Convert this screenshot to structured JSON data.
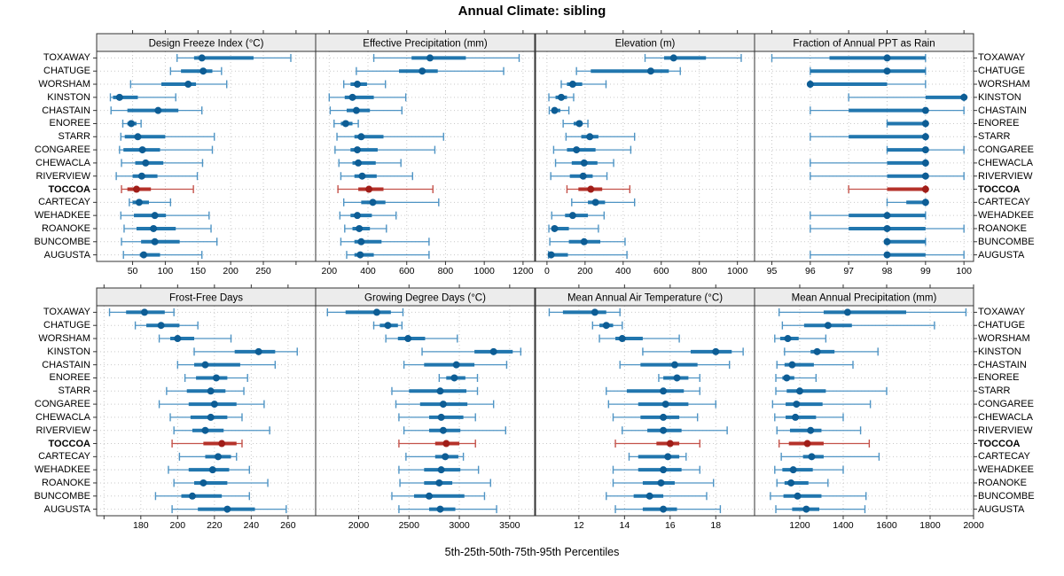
{
  "chart_data": {
    "type": "dotplot-percentiles",
    "title": "Annual Climate: sibling",
    "xlabel": "5th-25th-50th-75th-95th Percentiles",
    "percentile_labels": [
      "5th",
      "25th",
      "50th",
      "75th",
      "95th"
    ],
    "stations": [
      "TOXAWAY",
      "CHATUGE",
      "WORSHAM",
      "KINSTON",
      "CHASTAIN",
      "ENOREE",
      "STARR",
      "CONGAREE",
      "CHEWACLA",
      "RIVERVIEW",
      "TOCCOA",
      "CARTECAY",
      "WEHADKEE",
      "ROANOKE",
      "BUNCOMBE",
      "AUGUSTA"
    ],
    "highlight_station": "TOCCOA",
    "colors": {
      "blue_line": "#4f94c4",
      "blue_bar": "#2176ae",
      "blue_dot": "#0d5d95",
      "red_line": "#c4524a",
      "red_bar": "#b5322a",
      "red_dot": "#a01d18",
      "gridline": "#c9c9c9",
      "strip_bg": "#ececec",
      "border": "#333333",
      "tick": "#333333",
      "text": "#000000"
    },
    "layout": {
      "rows": 2,
      "cols": 4,
      "grid": "dotted",
      "legend": false,
      "station_labels": "both-sides"
    },
    "panels": [
      {
        "title": "Design Freeze Index (°C)",
        "row": 0,
        "col": 0,
        "ticks": [
          50,
          100,
          150,
          200,
          250
        ],
        "extra_gridlines": [
          300
        ],
        "xlim": [
          -5,
          330
        ],
        "values": {
          "TOXAWAY": [
            118,
            144,
            156,
            235,
            292
          ],
          "CHATUGE": [
            108,
            124,
            158,
            172,
            186
          ],
          "WORSHAM": [
            47,
            94,
            135,
            147,
            194
          ],
          "KINSTON": [
            16,
            20,
            30,
            58,
            116
          ],
          "CHASTAIN": [
            17,
            42,
            89,
            120,
            156
          ],
          "ENOREE": [
            35,
            42,
            48,
            56,
            63
          ],
          "STARR": [
            32,
            38,
            58,
            100,
            175
          ],
          "CONGAREE": [
            30,
            36,
            65,
            92,
            172
          ],
          "CHEWACLA": [
            33,
            54,
            70,
            97,
            157
          ],
          "RIVERVIEW": [
            25,
            50,
            64,
            88,
            149
          ],
          "TOCCOA": [
            33,
            42,
            56,
            78,
            143
          ],
          "CARTECAY": [
            45,
            50,
            60,
            75,
            108
          ],
          "WEHADKEE": [
            32,
            52,
            84,
            101,
            167
          ],
          "ROANOKE": [
            37,
            56,
            82,
            116,
            170
          ],
          "BUNCOMBE": [
            33,
            63,
            84,
            122,
            179
          ],
          "AUGUSTA": [
            36,
            61,
            67,
            92,
            156
          ]
        }
      },
      {
        "title": "Effective Precipitation (mm)",
        "row": 0,
        "col": 1,
        "ticks": [
          200,
          400,
          600,
          800,
          1000,
          1200
        ],
        "extra_gridlines": [],
        "xlim": [
          130,
          1260
        ],
        "values": {
          "TOXAWAY": [
            430,
            625,
            720,
            905,
            1180
          ],
          "CHATUGE": [
            340,
            560,
            680,
            760,
            1100
          ],
          "WORSHAM": [
            275,
            310,
            345,
            395,
            490
          ],
          "KINSTON": [
            200,
            280,
            320,
            430,
            595
          ],
          "CHASTAIN": [
            205,
            290,
            340,
            410,
            575
          ],
          "ENOREE": [
            225,
            260,
            285,
            320,
            350
          ],
          "STARR": [
            240,
            330,
            365,
            480,
            790
          ],
          "CONGAREE": [
            230,
            310,
            345,
            450,
            745
          ],
          "CHEWACLA": [
            250,
            320,
            350,
            440,
            570
          ],
          "RIVERVIEW": [
            260,
            330,
            370,
            445,
            630
          ],
          "TOCCOA": [
            245,
            350,
            405,
            480,
            735
          ],
          "CARTECAY": [
            275,
            365,
            425,
            490,
            765
          ],
          "WEHADKEE": [
            255,
            310,
            345,
            420,
            545
          ],
          "ROANOKE": [
            280,
            320,
            355,
            410,
            495
          ],
          "BUNCOMBE": [
            260,
            330,
            365,
            470,
            715
          ],
          "AUGUSTA": [
            290,
            330,
            360,
            430,
            715
          ]
        }
      },
      {
        "title": "Elevation (m)",
        "row": 0,
        "col": 2,
        "ticks": [
          0,
          200,
          400,
          600,
          800,
          1000
        ],
        "extra_gridlines": [],
        "xlim": [
          -60,
          1090
        ],
        "values": {
          "TOXAWAY": [
            515,
            615,
            665,
            835,
            1020
          ],
          "CHATUGE": [
            155,
            230,
            545,
            640,
            700
          ],
          "WORSHAM": [
            75,
            105,
            135,
            185,
            310
          ],
          "KINSTON": [
            10,
            45,
            75,
            105,
            140
          ],
          "CHASTAIN": [
            12,
            25,
            40,
            70,
            115
          ],
          "ENOREE": [
            85,
            140,
            170,
            185,
            215
          ],
          "STARR": [
            100,
            180,
            225,
            270,
            460
          ],
          "CONGAREE": [
            35,
            105,
            155,
            255,
            440
          ],
          "CHEWACLA": [
            45,
            130,
            195,
            265,
            350
          ],
          "RIVERVIEW": [
            20,
            120,
            190,
            240,
            315
          ],
          "TOCCOA": [
            105,
            165,
            230,
            290,
            435
          ],
          "CARTECAY": [
            130,
            215,
            255,
            305,
            460
          ],
          "WEHADKEE": [
            25,
            95,
            135,
            215,
            300
          ],
          "ROANOKE": [
            10,
            25,
            40,
            115,
            270
          ],
          "BUNCOMBE": [
            15,
            115,
            195,
            280,
            410
          ],
          "AUGUSTA": [
            8,
            15,
            22,
            110,
            420
          ]
        }
      },
      {
        "title": "Fraction of Annual PPT as Rain",
        "row": 0,
        "col": 3,
        "ticks": [
          95,
          96,
          97,
          98,
          99,
          100
        ],
        "extra_gridlines": [],
        "xlim": [
          94.55,
          100.25
        ],
        "values": {
          "TOXAWAY": [
            95,
            96.5,
            98,
            99,
            99
          ],
          "CHATUGE": [
            96,
            96,
            98,
            99,
            99
          ],
          "WORSHAM": [
            96,
            96,
            96,
            98,
            99
          ],
          "KINSTON": [
            97,
            99,
            100,
            100,
            100
          ],
          "CHASTAIN": [
            96,
            97,
            99,
            99,
            100
          ],
          "ENOREE": [
            98,
            98,
            99,
            99,
            99
          ],
          "STARR": [
            96,
            97,
            99,
            99,
            99
          ],
          "CONGAREE": [
            98,
            98,
            99,
            99,
            100
          ],
          "CHEWACLA": [
            96,
            98,
            99,
            99,
            99
          ],
          "RIVERVIEW": [
            96,
            98,
            99,
            99,
            100
          ],
          "TOCCOA": [
            97,
            98,
            99,
            99,
            99
          ],
          "CARTECAY": [
            98,
            98.5,
            99,
            99,
            99
          ],
          "WEHADKEE": [
            96,
            97,
            98,
            99,
            99
          ],
          "ROANOKE": [
            96,
            97,
            98,
            99,
            100
          ],
          "BUNCOMBE": [
            98,
            98,
            98,
            99,
            99
          ],
          "AUGUSTA": [
            96,
            98,
            98,
            99,
            100
          ]
        }
      },
      {
        "title": "Frost-Free Days",
        "row": 1,
        "col": 0,
        "ticks": [
          180,
          200,
          220,
          240,
          260
        ],
        "extra_gridlines": [
          160
        ],
        "xlim": [
          156,
          275
        ],
        "values": {
          "TOXAWAY": [
            163,
            172,
            182,
            193,
            198
          ],
          "CHATUGE": [
            177,
            183,
            191,
            201,
            211
          ],
          "WORSHAM": [
            190,
            196,
            200,
            209,
            229
          ],
          "KINSTON": [
            209,
            231,
            244,
            253,
            265
          ],
          "CHASTAIN": [
            200,
            209,
            215,
            234,
            253
          ],
          "ENOREE": [
            204,
            210,
            221,
            227,
            238
          ],
          "STARR": [
            194,
            205,
            218,
            226,
            236
          ],
          "CONGAREE": [
            190,
            206,
            220,
            232,
            247
          ],
          "CHEWACLA": [
            196,
            207,
            218,
            227,
            235
          ],
          "RIVERVIEW": [
            198,
            208,
            215,
            225,
            250
          ],
          "TOCCOA": [
            197,
            214,
            224,
            232,
            235
          ],
          "CARTECAY": [
            201,
            215,
            222,
            229,
            232
          ],
          "WEHADKEE": [
            195,
            206,
            219,
            228,
            239
          ],
          "ROANOKE": [
            198,
            209,
            214,
            227,
            249
          ],
          "BUNCOMBE": [
            188,
            202,
            208,
            224,
            239
          ],
          "AUGUSTA": [
            197,
            211,
            227,
            242,
            259
          ]
        }
      },
      {
        "title": "Growing Degree Days (°C)",
        "row": 1,
        "col": 1,
        "ticks": [
          2000,
          2500,
          3000,
          3500
        ],
        "extra_gridlines": [],
        "xlim": [
          1573,
          3748
        ],
        "values": {
          "TOXAWAY": [
            1690,
            1870,
            2180,
            2320,
            2440
          ],
          "CHATUGE": [
            2150,
            2210,
            2290,
            2390,
            2430
          ],
          "WORSHAM": [
            2270,
            2390,
            2490,
            2660,
            2980
          ],
          "KINSTON": [
            2630,
            3150,
            3340,
            3530,
            3610
          ],
          "CHASTAIN": [
            2450,
            2650,
            2970,
            3150,
            3470
          ],
          "ENOREE": [
            2800,
            2870,
            2950,
            3060,
            3180
          ],
          "STARR": [
            2330,
            2500,
            2810,
            3070,
            3180
          ],
          "CONGAREE": [
            2370,
            2610,
            2840,
            3080,
            3340
          ],
          "CHEWACLA": [
            2400,
            2700,
            2820,
            3040,
            3160
          ],
          "RIVERVIEW": [
            2450,
            2700,
            2840,
            3010,
            3460
          ],
          "TOCCOA": [
            2400,
            2760,
            2870,
            3000,
            3160
          ],
          "CARTECAY": [
            2470,
            2760,
            2860,
            2990,
            3040
          ],
          "WEHADKEE": [
            2400,
            2650,
            2820,
            3010,
            3190
          ],
          "ROANOKE": [
            2410,
            2650,
            2800,
            2930,
            3310
          ],
          "BUNCOMBE": [
            2330,
            2550,
            2700,
            3050,
            3250
          ],
          "AUGUSTA": [
            2400,
            2700,
            2810,
            2960,
            3370
          ]
        }
      },
      {
        "title": "Mean Annual Air Temperature (°C)",
        "row": 1,
        "col": 2,
        "ticks": [
          12,
          14,
          16,
          18
        ],
        "extra_gridlines": [],
        "xlim": [
          10.1,
          19.7
        ],
        "values": {
          "TOXAWAY": [
            10.7,
            11.3,
            12.7,
            13.2,
            13.8
          ],
          "CHATUGE": [
            12.6,
            12.9,
            13.2,
            13.5,
            13.9
          ],
          "WORSHAM": [
            12.9,
            13.6,
            13.9,
            14.8,
            16.4
          ],
          "KINSTON": [
            14.8,
            16.9,
            18.0,
            18.7,
            19.2
          ],
          "CHASTAIN": [
            13.8,
            14.7,
            16.2,
            17.2,
            18.6
          ],
          "ENOREE": [
            15.5,
            15.7,
            16.3,
            16.8,
            17.3
          ],
          "STARR": [
            13.2,
            14.1,
            15.7,
            16.6,
            17.3
          ],
          "CONGAREE": [
            13.3,
            14.6,
            15.8,
            16.8,
            18.0
          ],
          "CHEWACLA": [
            13.5,
            14.7,
            15.7,
            16.4,
            17.2
          ],
          "RIVERVIEW": [
            13.9,
            15.0,
            15.7,
            16.5,
            18.5
          ],
          "TOCCOA": [
            13.6,
            15.4,
            16.0,
            16.4,
            17.3
          ],
          "CARTECAY": [
            14.2,
            14.6,
            15.9,
            16.4,
            16.7
          ],
          "WEHADKEE": [
            13.5,
            14.6,
            15.7,
            16.5,
            17.3
          ],
          "ROANOKE": [
            13.5,
            14.8,
            15.6,
            16.2,
            17.9
          ],
          "BUNCOMBE": [
            13.2,
            14.4,
            15.1,
            15.7,
            17.6
          ],
          "AUGUSTA": [
            13.6,
            14.8,
            15.7,
            16.3,
            18.2
          ]
        }
      },
      {
        "title": "Mean Annual Precipitation (mm)",
        "row": 1,
        "col": 3,
        "ticks": [
          1200,
          1400,
          1600,
          1800,
          2000
        ],
        "extra_gridlines": [],
        "xlim": [
          992,
          2000
        ],
        "values": {
          "TOXAWAY": [
            1105,
            1310,
            1420,
            1690,
            1965
          ],
          "CHATUGE": [
            1120,
            1220,
            1330,
            1440,
            1820
          ],
          "WORSHAM": [
            1085,
            1110,
            1145,
            1195,
            1320
          ],
          "KINSTON": [
            1130,
            1250,
            1280,
            1360,
            1560
          ],
          "CHASTAIN": [
            1095,
            1130,
            1165,
            1265,
            1445
          ],
          "ENOREE": [
            1090,
            1120,
            1140,
            1175,
            1275
          ],
          "STARR": [
            1090,
            1140,
            1200,
            1320,
            1600
          ],
          "CONGAREE": [
            1075,
            1135,
            1185,
            1305,
            1525
          ],
          "CHEWACLA": [
            1085,
            1135,
            1180,
            1275,
            1400
          ],
          "RIVERVIEW": [
            1095,
            1155,
            1250,
            1300,
            1480
          ],
          "TOCCOA": [
            1105,
            1150,
            1235,
            1310,
            1520
          ],
          "CARTECAY": [
            1115,
            1215,
            1255,
            1310,
            1565
          ],
          "WEHADKEE": [
            1085,
            1120,
            1170,
            1260,
            1400
          ],
          "ROANOKE": [
            1095,
            1130,
            1160,
            1240,
            1330
          ],
          "BUNCOMBE": [
            1065,
            1125,
            1190,
            1300,
            1505
          ],
          "AUGUSTA": [
            1090,
            1165,
            1230,
            1290,
            1500
          ]
        }
      }
    ]
  }
}
